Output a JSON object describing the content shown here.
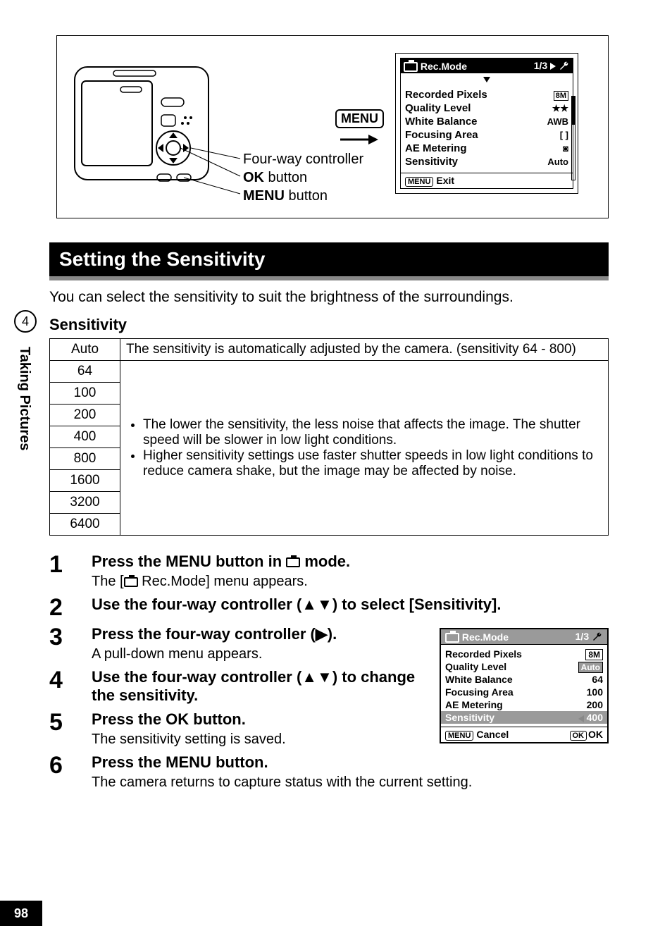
{
  "page_number": "98",
  "chapter_number": "4",
  "chapter_label": "Taking Pictures",
  "diagram": {
    "menu_label": "MENU",
    "four_way_label": "Four-way controller",
    "ok_label_prefix": "OK",
    "ok_label_suffix": " button",
    "menu_btn_label_prefix": "MENU",
    "menu_btn_label_suffix": " button"
  },
  "lcd1": {
    "title": "Rec.Mode",
    "page": "1/3",
    "rows": [
      {
        "label": "Recorded Pixels",
        "value": "8M",
        "boxed": true
      },
      {
        "label": "Quality Level",
        "value": "★★"
      },
      {
        "label": "White Balance",
        "value": "AWB"
      },
      {
        "label": "Focusing Area",
        "value": "[  ]"
      },
      {
        "label": "AE Metering",
        "value": "◙"
      },
      {
        "label": "Sensitivity",
        "value": "Auto"
      }
    ],
    "footer_badge": "MENU",
    "footer_text": "Exit"
  },
  "section_title": "Setting the Sensitivity",
  "intro": "You can select the sensitivity to suit the brightness of the surroundings.",
  "subheading": "Sensitivity",
  "table": {
    "auto_label": "Auto",
    "auto_desc": "The sensitivity is automatically adjusted by the camera. (sensitivity 64 - 800)",
    "iso_values": [
      "64",
      "100",
      "200",
      "400",
      "800",
      "1600",
      "3200",
      "6400"
    ],
    "bullets": [
      "The lower the sensitivity, the less noise that affects the image. The shutter speed will be slower in low light conditions.",
      "Higher sensitivity settings use faster shutter speeds in low light conditions to reduce camera shake, but the image may be affected by noise."
    ]
  },
  "steps": [
    {
      "n": "1",
      "title_pre": "Press the ",
      "title_b": "MENU",
      "title_post": " button in ",
      "title_icon": "camera",
      "title_end": " mode.",
      "desc_pre": "The [",
      "desc_icon": "camera",
      "desc_post": " Rec.Mode] menu appears."
    },
    {
      "n": "2",
      "title": "Use the four-way controller (▲▼) to select [Sensitivity]."
    },
    {
      "n": "3",
      "title": "Press the four-way controller (▶).",
      "desc": "A pull-down menu appears."
    },
    {
      "n": "4",
      "title": "Use the four-way controller (▲▼) to change the sensitivity."
    },
    {
      "n": "5",
      "title_pre": "Press the ",
      "title_b": "OK",
      "title_post": " button.",
      "desc": "The sensitivity setting is saved."
    },
    {
      "n": "6",
      "title_pre": "Press the ",
      "title_b": "MENU",
      "title_post": " button.",
      "desc": "The camera returns to capture status with the current setting."
    }
  ],
  "lcd2": {
    "title": "Rec.Mode",
    "page": "1/3",
    "rows": [
      {
        "label": "Recorded Pixels",
        "value": "8M",
        "boxed": true
      },
      {
        "label": "Quality Level",
        "value": "Auto",
        "hl": true
      },
      {
        "label": "White Balance",
        "value": "64"
      },
      {
        "label": "Focusing Area",
        "value": "100"
      },
      {
        "label": "AE Metering",
        "value": "200"
      },
      {
        "label": "Sensitivity",
        "value": "400",
        "rowhl": true
      }
    ],
    "footer_left_badge": "MENU",
    "footer_left": "Cancel",
    "footer_right_badge": "OK",
    "footer_right": "OK"
  },
  "colors": {
    "black": "#000000",
    "gray": "#9a9a9a",
    "white": "#ffffff"
  }
}
